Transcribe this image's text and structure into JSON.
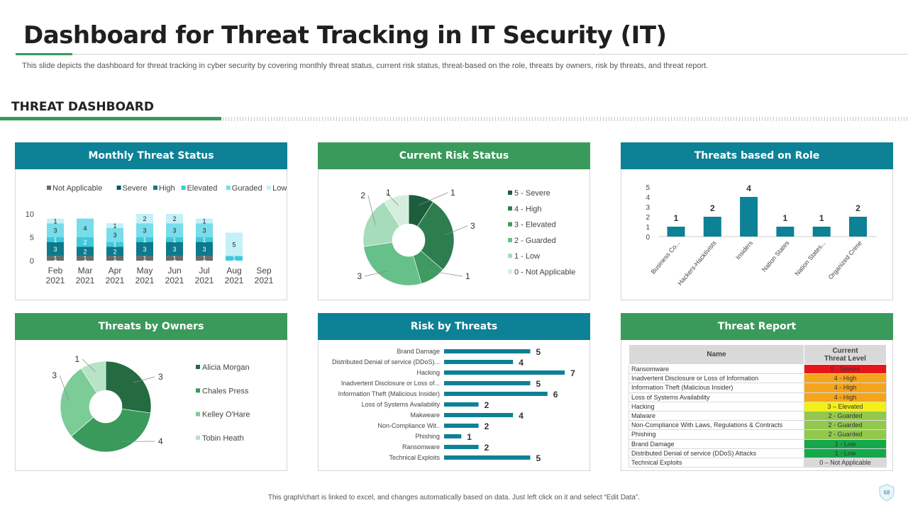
{
  "header": {
    "title": "Dashboard for Threat Tracking in IT Security (IT)",
    "subtitle": "This slide depicts the dashboard for threat tracking in cyber security by covering monthly threat status, current risk status, threat-based on the role, threats by owners, risk by threats, and threat report."
  },
  "section": {
    "title": "THREAT DASHBOARD"
  },
  "panels": {
    "monthly": "Monthly Threat Status",
    "risk_status": "Current Risk Status",
    "role": "Threats based on Role",
    "owners": "Threats by Owners",
    "risk_threats": "Risk by Threats",
    "report": "Threat Report"
  },
  "chart_data": [
    {
      "id": "monthly",
      "type": "bar",
      "stacked": true,
      "categories": [
        "Feb\n2021",
        "Mar\n2021",
        "Apr\n2021",
        "May\n2021",
        "Jun\n2021",
        "Jul\n2021",
        "Aug\n2021",
        "Sep\n2021"
      ],
      "ylim": [
        0,
        10
      ],
      "yticks": [
        0,
        5,
        10
      ],
      "legend": "top",
      "series": [
        {
          "name": "Not Applicable",
          "color": "#6b6b6b",
          "values": [
            1,
            1,
            1,
            1,
            1,
            1,
            0,
            0
          ]
        },
        {
          "name": "Severe",
          "color": "#0b5763",
          "values": [
            0,
            0,
            0,
            0,
            0,
            0,
            0,
            0
          ]
        },
        {
          "name": "High",
          "color": "#0d7a8c",
          "values": [
            3,
            2,
            2,
            3,
            3,
            3,
            0,
            0
          ]
        },
        {
          "name": "Elevated",
          "color": "#3ec9dd",
          "values": [
            1,
            2,
            1,
            1,
            1,
            1,
            1,
            0
          ]
        },
        {
          "name": "Guraded",
          "color": "#77dde9",
          "values": [
            3,
            4,
            3,
            3,
            3,
            3,
            0,
            0
          ]
        },
        {
          "name": "Low",
          "color": "#c4f1f7",
          "values": [
            1,
            0,
            1,
            2,
            2,
            1,
            5,
            0
          ]
        }
      ]
    },
    {
      "id": "risk_status",
      "type": "pie",
      "donut": true,
      "legend": "right",
      "slices": [
        {
          "name": "5 - Severe",
          "value": 1,
          "color": "#1d5e3c"
        },
        {
          "name": "4 - High",
          "value": 3,
          "color": "#2e7d4f"
        },
        {
          "name": "3 - Elevated",
          "value": 1,
          "color": "#3f9a62"
        },
        {
          "name": "2 - Guarded",
          "value": 3,
          "color": "#66c08a"
        },
        {
          "name": "1 - Low",
          "value": 2,
          "color": "#a7dcbb"
        },
        {
          "name": "0 - Not Applicable",
          "value": 1,
          "color": "#d4eedd"
        }
      ]
    },
    {
      "id": "role",
      "type": "bar",
      "categories": [
        "Business Co...",
        "Hackers-Hacktivists",
        "Insiders",
        "Nation States",
        "Nation States...",
        "Organized Crime"
      ],
      "values": [
        1,
        2,
        4,
        1,
        1,
        2
      ],
      "ylim": [
        0,
        5
      ],
      "yticks": [
        0,
        1,
        2,
        3,
        4,
        5
      ],
      "color": "#0d8196"
    },
    {
      "id": "owners",
      "type": "pie",
      "donut": true,
      "legend": "right",
      "slices": [
        {
          "name": "Alicia Morgan",
          "value": 3,
          "color": "#246b42"
        },
        {
          "name": "Chales Press",
          "value": 4,
          "color": "#3a9a5b"
        },
        {
          "name": "Kelley O'Hare",
          "value": 3,
          "color": "#7ccc98"
        },
        {
          "name": "Tobin Heath",
          "value": 1,
          "color": "#b7e3c6"
        }
      ]
    },
    {
      "id": "risk_threats",
      "type": "bar",
      "orientation": "horizontal",
      "categories": [
        "Brand Damage",
        "Distributed Denial of service (DDoS)...",
        "Hacking",
        "Inadvertent Disclosure or Loss of...",
        "Information Theft (Malicious Insider)",
        "Loss of Systems Availability",
        "Makweare",
        "Non-Compliance Wit..",
        "Phishing",
        "Ransomware",
        "Technical Exploits"
      ],
      "values": [
        5,
        4,
        7,
        5,
        6,
        2,
        4,
        2,
        1,
        2,
        5
      ],
      "xlim": [
        0,
        8
      ],
      "color": "#0d8196"
    },
    {
      "id": "report",
      "type": "table",
      "columns": [
        "Name",
        "Current\nThreat Level"
      ],
      "rows": [
        {
          "name": "Ransomware",
          "level": "5 - Severe",
          "color": "#e8141b"
        },
        {
          "name": "Inadvertent Disclosure or Loss of Information",
          "level": "4 - High",
          "color": "#f5a51b"
        },
        {
          "name": "Information Theft (Malicious Insider)",
          "level": "4 - High",
          "color": "#f5a51b"
        },
        {
          "name": "Loss of Systems Availability",
          "level": "4 - High",
          "color": "#f5a51b"
        },
        {
          "name": "Hacking",
          "level": "3 – Elevated",
          "color": "#f4f00f"
        },
        {
          "name": "Malware",
          "level": "2 - Guarded",
          "color": "#92c94d"
        },
        {
          "name": "Non-Compliance With Laws, Regulations & Contracts",
          "level": "2 - Guarded",
          "color": "#92c94d"
        },
        {
          "name": "Phishing",
          "level": "2 - Guarded",
          "color": "#92c94d"
        },
        {
          "name": "Brand Damage",
          "level": "1 - Low",
          "color": "#15a84a"
        },
        {
          "name": "Distributed Denial of service (DDoS) Attacks",
          "level": "1 - Low",
          "color": "#15a84a"
        },
        {
          "name": "Technical Exploits",
          "level": "0 – Not Applicable",
          "color": "#d9d9d9"
        }
      ]
    }
  ],
  "footer": {
    "note": "This graph/chart is linked to excel, and changes automatically based on data. Just left click on it and select “Edit Data”.",
    "page": "68"
  }
}
